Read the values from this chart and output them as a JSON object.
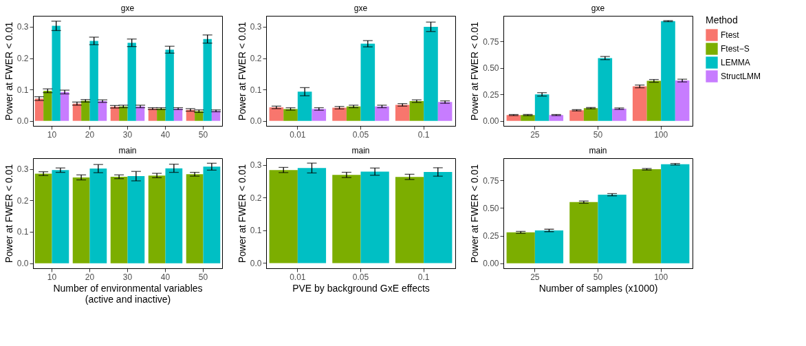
{
  "chart_data": [
    {
      "type": "bar",
      "title": "gxe",
      "ylabel": "Power at FWER < 0.01",
      "legend": "right",
      "legend_title": "Method",
      "categories": [
        "10",
        "20",
        "30",
        "40",
        "50"
      ],
      "ylim": [
        -0.016,
        0.335
      ],
      "yticks": [
        {
          "value": 0,
          "label": "0.0"
        },
        {
          "value": 0.1,
          "label": "0.1"
        },
        {
          "value": 0.2,
          "label": "0.2"
        },
        {
          "value": 0.3,
          "label": "0.3"
        }
      ],
      "series": [
        {
          "name": "Ftest",
          "color": "#f8766d",
          "values": [
            0.071,
            0.055,
            0.045,
            0.039,
            0.035
          ],
          "errors": [
            0.006,
            0.005,
            0.004,
            0.003,
            0.004
          ]
        },
        {
          "name": "Ftest−S",
          "color": "#7cae00",
          "values": [
            0.096,
            0.064,
            0.046,
            0.039,
            0.031
          ],
          "errors": [
            0.006,
            0.004,
            0.004,
            0.003,
            0.004
          ]
        },
        {
          "name": "LEMMA",
          "color": "#00bfc4",
          "values": [
            0.303,
            0.255,
            0.249,
            0.227,
            0.261
          ],
          "errors": [
            0.015,
            0.012,
            0.012,
            0.011,
            0.013
          ]
        },
        {
          "name": "StructLMM",
          "color": "#c77cff",
          "values": [
            0.092,
            0.063,
            0.046,
            0.039,
            0.032
          ],
          "errors": [
            0.006,
            0.004,
            0.004,
            0.003,
            0.003
          ]
        }
      ]
    },
    {
      "type": "bar",
      "title": "gxe",
      "ylabel": "Power at FWER < 0.01",
      "categories": [
        "0.01",
        "0.05",
        "0.1"
      ],
      "ylim": [
        -0.016,
        0.335
      ],
      "yticks": [
        {
          "value": 0,
          "label": "0.0"
        },
        {
          "value": 0.1,
          "label": "0.1"
        },
        {
          "value": 0.2,
          "label": "0.2"
        },
        {
          "value": 0.3,
          "label": "0.3"
        }
      ],
      "series": [
        {
          "name": "Ftest",
          "color": "#f8766d",
          "values": [
            0.043,
            0.042,
            0.051
          ],
          "errors": [
            0.004,
            0.004,
            0.004
          ]
        },
        {
          "name": "Ftest−S",
          "color": "#7cae00",
          "values": [
            0.038,
            0.046,
            0.063
          ],
          "errors": [
            0.004,
            0.004,
            0.004
          ]
        },
        {
          "name": "LEMMA",
          "color": "#00bfc4",
          "values": [
            0.093,
            0.246,
            0.3
          ],
          "errors": [
            0.013,
            0.01,
            0.015
          ]
        },
        {
          "name": "StructLMM",
          "color": "#c77cff",
          "values": [
            0.038,
            0.046,
            0.06
          ],
          "errors": [
            0.004,
            0.004,
            0.004
          ]
        }
      ]
    },
    {
      "type": "bar",
      "title": "gxe",
      "ylabel": "Power at FWER < 0.01",
      "categories": [
        "25",
        "50",
        "100"
      ],
      "ylim": [
        -0.047,
        0.99
      ],
      "yticks": [
        {
          "value": 0,
          "label": "0.00"
        },
        {
          "value": 0.25,
          "label": "0.25"
        },
        {
          "value": 0.5,
          "label": "0.50"
        },
        {
          "value": 0.75,
          "label": "0.75"
        }
      ],
      "series": [
        {
          "name": "Ftest",
          "color": "#f8766d",
          "values": [
            0.055,
            0.1,
            0.325
          ],
          "errors": [
            0.005,
            0.006,
            0.013
          ]
        },
        {
          "name": "Ftest−S",
          "color": "#7cae00",
          "values": [
            0.055,
            0.12,
            0.377
          ],
          "errors": [
            0.005,
            0.006,
            0.013
          ]
        },
        {
          "name": "LEMMA",
          "color": "#00bfc4",
          "values": [
            0.25,
            0.592,
            0.94
          ],
          "errors": [
            0.016,
            0.015,
            0.005
          ]
        },
        {
          "name": "StructLMM",
          "color": "#c77cff",
          "values": [
            0.055,
            0.115,
            0.38
          ],
          "errors": [
            0.005,
            0.007,
            0.013
          ]
        }
      ]
    },
    {
      "type": "bar",
      "title": "main",
      "ylabel": "Power at FWER < 0.01",
      "xlabel": "Number of environmental variables\n(active and inactive)",
      "categories": [
        "10",
        "20",
        "30",
        "40",
        "50"
      ],
      "ylim": [
        -0.016,
        0.334
      ],
      "yticks": [
        {
          "value": 0,
          "label": "0.0"
        },
        {
          "value": 0.1,
          "label": "0.1"
        },
        {
          "value": 0.2,
          "label": "0.2"
        },
        {
          "value": 0.3,
          "label": "0.3"
        }
      ],
      "series": [
        {
          "name": "Ftest−S",
          "color": "#7cae00",
          "values": [
            0.285,
            0.273,
            0.275,
            0.279,
            0.283
          ],
          "errors": [
            0.006,
            0.008,
            0.006,
            0.007,
            0.006
          ]
        },
        {
          "name": "LEMMA",
          "color": "#00bfc4",
          "values": [
            0.296,
            0.301,
            0.277,
            0.302,
            0.307
          ],
          "errors": [
            0.007,
            0.013,
            0.015,
            0.013,
            0.011
          ]
        }
      ]
    },
    {
      "type": "bar",
      "title": "main",
      "ylabel": "Power at FWER < 0.01",
      "xlabel": "PVE by background GxE effects",
      "categories": [
        "0.01",
        "0.05",
        "0.1"
      ],
      "ylim": [
        -0.016,
        0.32
      ],
      "yticks": [
        {
          "value": 0,
          "label": "0.0"
        },
        {
          "value": 0.1,
          "label": "0.1"
        },
        {
          "value": 0.2,
          "label": "0.2"
        },
        {
          "value": 0.3,
          "label": "0.3"
        }
      ],
      "series": [
        {
          "name": "Ftest−S",
          "color": "#7cae00",
          "values": [
            0.284,
            0.269,
            0.263
          ],
          "errors": [
            0.008,
            0.008,
            0.008
          ]
        },
        {
          "name": "LEMMA",
          "color": "#00bfc4",
          "values": [
            0.29,
            0.279,
            0.278
          ],
          "errors": [
            0.015,
            0.011,
            0.013
          ]
        }
      ]
    },
    {
      "type": "bar",
      "title": "main",
      "ylabel": "Power at FWER < 0.01",
      "xlabel": "Number of samples (x1000)",
      "categories": [
        "25",
        "50",
        "100"
      ],
      "ylim": [
        -0.045,
        0.95
      ],
      "yticks": [
        {
          "value": 0,
          "label": "0.00"
        },
        {
          "value": 0.25,
          "label": "0.25"
        },
        {
          "value": 0.5,
          "label": "0.50"
        },
        {
          "value": 0.75,
          "label": "0.75"
        }
      ],
      "series": [
        {
          "name": "Ftest−S",
          "color": "#7cae00",
          "values": [
            0.28,
            0.553,
            0.85
          ],
          "errors": [
            0.008,
            0.01,
            0.007
          ]
        },
        {
          "name": "LEMMA",
          "color": "#00bfc4",
          "values": [
            0.297,
            0.62,
            0.895
          ],
          "errors": [
            0.011,
            0.01,
            0.007
          ]
        }
      ]
    }
  ]
}
